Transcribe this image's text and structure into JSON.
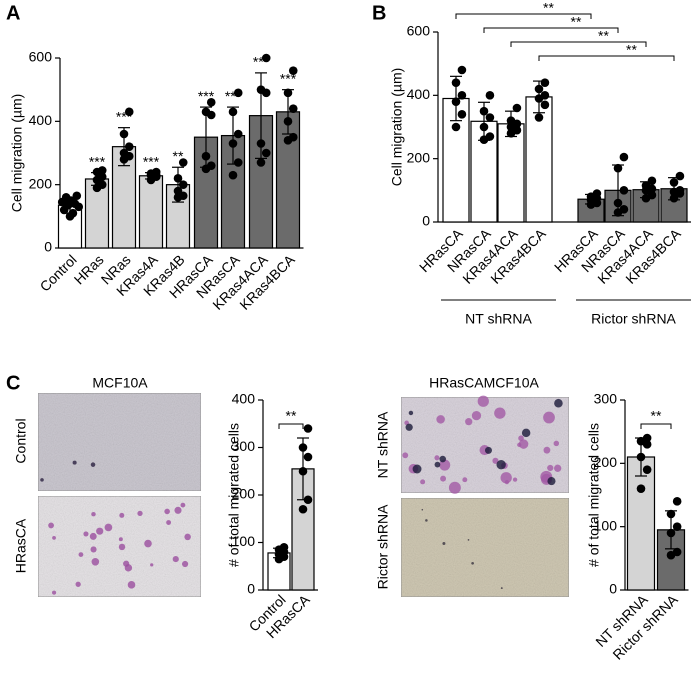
{
  "panel_labels": [
    "A",
    "B",
    "C"
  ],
  "images": {
    "left_title": "MCF10A",
    "left_rows": [
      "Control",
      "HRasCA"
    ],
    "right_title": "HRasCAMCF10A",
    "right_rows": [
      "NT shRNA",
      "Rictor shRNA"
    ]
  },
  "chart_data": [
    {
      "type": "bar",
      "y_label": "Cell migration (µm)",
      "categories": [
        "Control",
        "HRas",
        "NRas",
        "KRas4A",
        "KRas4B",
        "HRasCA",
        "NRasCA",
        "KRas4ACA",
        "KRas4BCA"
      ],
      "values": [
        135,
        218,
        320,
        228,
        200,
        350,
        355,
        418,
        430
      ],
      "errors": [
        25,
        20,
        60,
        10,
        55,
        95,
        90,
        135,
        70
      ],
      "points": [
        [
          100,
          110,
          120,
          130,
          135,
          140,
          145,
          150,
          160,
          165
        ],
        [
          190,
          200,
          215,
          225,
          240,
          245
        ],
        [
          280,
          290,
          300,
          320,
          360,
          430
        ],
        [
          215,
          225,
          230,
          230,
          235,
          240
        ],
        [
          160,
          165,
          180,
          200,
          220,
          270
        ],
        [
          250,
          260,
          290,
          420,
          430,
          460
        ],
        [
          230,
          270,
          330,
          360,
          430,
          490
        ],
        [
          270,
          300,
          330,
          490,
          500,
          600
        ],
        [
          340,
          350,
          400,
          440,
          490,
          560
        ]
      ],
      "colors": [
        "#ffffff",
        "#d4d4d4",
        "#d4d4d4",
        "#d4d4d4",
        "#d4d4d4",
        "#6b6b6b",
        "#6b6b6b",
        "#6b6b6b",
        "#6b6b6b"
      ],
      "significance": [
        null,
        "***",
        "***",
        "***",
        "**",
        "***",
        "***",
        "***",
        "***"
      ],
      "ylim": [
        0,
        600
      ],
      "yticks": [
        0,
        200,
        400,
        600
      ]
    },
    {
      "type": "bar",
      "y_label": "Cell migration (µm)",
      "categories": [
        "HRasCA",
        "NRasCA",
        "KRas4ACA",
        "KRas4BCA",
        "HRasCA",
        "NRasCA",
        "KRas4ACA",
        "KRas4BCA"
      ],
      "groups": [
        "NT shRNA",
        "Rictor shRNA"
      ],
      "values": [
        390,
        318,
        310,
        395,
        72,
        100,
        102,
        105
      ],
      "errors": [
        70,
        60,
        40,
        50,
        15,
        80,
        25,
        35
      ],
      "points": [
        [
          300,
          340,
          380,
          400,
          440,
          480
        ],
        [
          260,
          270,
          300,
          330,
          350,
          400
        ],
        [
          280,
          290,
          300,
          310,
          320,
          360
        ],
        [
          330,
          370,
          390,
          400,
          420,
          440
        ],
        [
          55,
          60,
          70,
          75,
          80,
          90
        ],
        [
          30,
          40,
          60,
          100,
          170,
          205
        ],
        [
          75,
          85,
          100,
          105,
          115,
          130
        ],
        [
          75,
          90,
          95,
          100,
          125,
          145
        ]
      ],
      "colors": [
        "#ffffff",
        "#ffffff",
        "#ffffff",
        "#ffffff",
        "#6b6b6b",
        "#6b6b6b",
        "#6b6b6b",
        "#6b6b6b"
      ],
      "pair_labels": [
        "**",
        "**",
        "**",
        "**"
      ],
      "ylim": [
        0,
        600
      ],
      "yticks": [
        0,
        200,
        400,
        600
      ]
    },
    {
      "type": "bar",
      "y_label": "# of total migrated cells",
      "categories": [
        "Control",
        "HRasCA"
      ],
      "values": [
        78,
        255
      ],
      "errors": [
        10,
        65
      ],
      "points": [
        [
          65,
          70,
          75,
          80,
          85,
          90
        ],
        [
          170,
          190,
          250,
          280,
          300,
          340
        ]
      ],
      "colors": [
        "#ffffff",
        "#d4d4d4"
      ],
      "bracket_label": "**",
      "ylim": [
        0,
        400
      ],
      "yticks": [
        0,
        100,
        200,
        300,
        400
      ]
    },
    {
      "type": "bar",
      "y_label": "# of total migrated cells",
      "categories": [
        "NT shRNA",
        "Rictor shRNA"
      ],
      "values": [
        210,
        95
      ],
      "errors": [
        30,
        30
      ],
      "points": [
        [
          160,
          190,
          210,
          230,
          235,
          240
        ],
        [
          55,
          60,
          90,
          100,
          120,
          140
        ]
      ],
      "colors": [
        "#d4d4d4",
        "#6b6b6b"
      ],
      "bracket_label": "**",
      "ylim": [
        0,
        300
      ],
      "yticks": [
        0,
        100,
        200,
        300
      ]
    }
  ]
}
